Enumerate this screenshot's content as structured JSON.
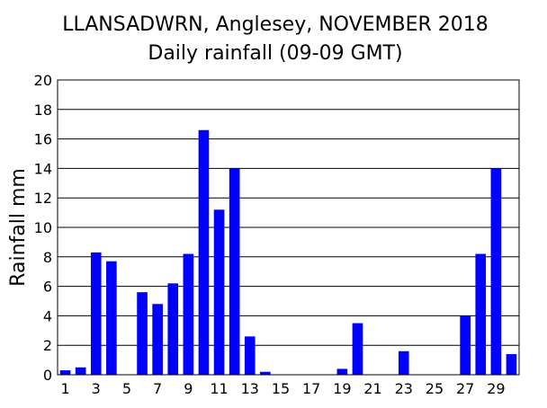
{
  "chart_data": {
    "type": "bar",
    "title": "LLANSADWRN, Anglesey, NOVEMBER 2018",
    "subtitle": "Daily rainfall (09-09 GMT)",
    "xlabel": "",
    "ylabel": "Rainfall mm",
    "ylim": [
      0,
      20
    ],
    "yticks": [
      0,
      2,
      4,
      6,
      8,
      10,
      12,
      14,
      16,
      18,
      20
    ],
    "grid": true,
    "legend": "none",
    "bar_color": "#0000ff",
    "categories": [
      1,
      2,
      3,
      4,
      5,
      6,
      7,
      8,
      9,
      10,
      11,
      12,
      13,
      14,
      15,
      16,
      17,
      18,
      19,
      20,
      21,
      22,
      23,
      24,
      25,
      26,
      27,
      28,
      29,
      30
    ],
    "xtick_labels": [
      "1",
      "3",
      "5",
      "7",
      "9",
      "11",
      "13",
      "15",
      "17",
      "19",
      "21",
      "23",
      "25",
      "27",
      "29"
    ],
    "values": [
      0.3,
      0.5,
      8.3,
      7.7,
      0,
      5.6,
      4.8,
      6.2,
      8.2,
      16.6,
      11.2,
      14,
      2.6,
      0.2,
      0,
      0,
      0,
      0,
      0.4,
      3.5,
      0,
      0,
      1.6,
      0,
      0,
      0,
      4,
      8.2,
      14,
      1.4
    ]
  }
}
